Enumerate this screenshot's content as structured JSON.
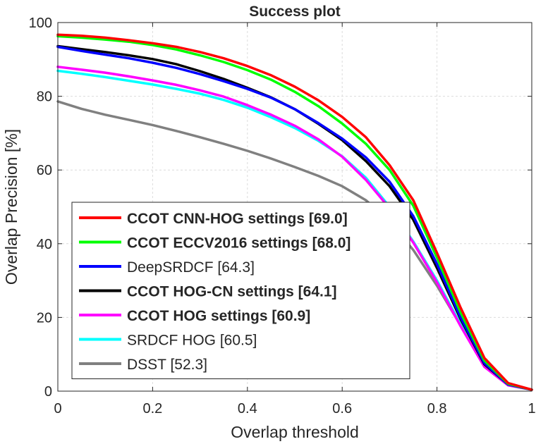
{
  "chart_data": {
    "type": "line",
    "title": "Success plot",
    "xlabel": "Overlap threshold",
    "ylabel": "Overlap Precision [%]",
    "xlim": [
      0,
      1
    ],
    "ylim": [
      0,
      100
    ],
    "xticks": [
      "0",
      "0.2",
      "0.4",
      "0.6",
      "0.8",
      "1"
    ],
    "yticks": [
      "0",
      "20",
      "40",
      "60",
      "80",
      "100"
    ],
    "grid": true,
    "legend_position": "bottom-left",
    "x": [
      0,
      0.05,
      0.1,
      0.15,
      0.2,
      0.25,
      0.3,
      0.35,
      0.4,
      0.45,
      0.5,
      0.55,
      0.6,
      0.65,
      0.7,
      0.75,
      0.8,
      0.85,
      0.9,
      0.95,
      1.0
    ],
    "series": [
      {
        "name": "CCOT CNN-HOG settings [69.0]",
        "bold": true,
        "color": "#ff0000",
        "values": [
          96.7,
          96.4,
          95.9,
          95.2,
          94.4,
          93.4,
          92.0,
          90.3,
          88.2,
          85.7,
          82.6,
          78.9,
          74.4,
          68.9,
          61.3,
          51.8,
          37.5,
          22.6,
          9.0,
          2.2,
          0.4
        ]
      },
      {
        "name": "CCOT ECCV2016 settings [68.0]",
        "bold": true,
        "color": "#00ff00",
        "values": [
          96.3,
          95.9,
          95.4,
          94.8,
          93.9,
          92.7,
          91.1,
          89.3,
          87.1,
          84.5,
          81.2,
          77.3,
          72.6,
          67.1,
          60.0,
          50.3,
          36.2,
          21.3,
          8.3,
          2.0,
          0.4
        ]
      },
      {
        "name": "DeepSRDCF [64.3]",
        "bold": false,
        "color": "#0000ff",
        "values": [
          93.4,
          92.3,
          91.3,
          90.3,
          89.1,
          87.7,
          86.0,
          84.1,
          82.0,
          79.6,
          76.5,
          72.7,
          68.5,
          63.4,
          56.8,
          47.5,
          34.5,
          20.0,
          7.6,
          1.8,
          0.4
        ]
      },
      {
        "name": "CCOT HOG-CN settings [64.1]",
        "bold": true,
        "color": "#000000",
        "values": [
          93.6,
          92.8,
          92.0,
          91.1,
          90.1,
          88.7,
          86.8,
          84.7,
          82.3,
          79.7,
          76.5,
          72.5,
          68.1,
          62.4,
          55.6,
          46.5,
          33.4,
          19.5,
          7.3,
          1.8,
          0.4
        ]
      },
      {
        "name": "CCOT HOG settings [60.9]",
        "bold": true,
        "color": "#ff00ff",
        "values": [
          88.0,
          87.2,
          86.4,
          85.4,
          84.3,
          83.1,
          81.6,
          79.9,
          77.6,
          75.0,
          72.0,
          68.3,
          63.6,
          57.3,
          49.6,
          40.3,
          29.5,
          17.6,
          6.6,
          1.6,
          0.4
        ]
      },
      {
        "name": "SRDCF HOG [60.5]",
        "bold": false,
        "color": "#00ffff",
        "values": [
          86.9,
          86.1,
          85.2,
          84.2,
          83.2,
          82.0,
          80.7,
          79.0,
          76.9,
          74.3,
          71.4,
          67.9,
          63.7,
          57.9,
          50.0,
          40.6,
          30.0,
          18.1,
          6.9,
          1.6,
          0.4
        ]
      },
      {
        "name": "DSST [52.3]",
        "bold": false,
        "color": "#808080",
        "values": [
          78.6,
          76.6,
          75.0,
          73.6,
          72.2,
          70.6,
          68.9,
          67.1,
          65.2,
          63.1,
          60.8,
          58.4,
          55.6,
          51.8,
          46.0,
          38.3,
          28.6,
          17.8,
          7.0,
          1.8,
          0.4
        ]
      }
    ]
  }
}
